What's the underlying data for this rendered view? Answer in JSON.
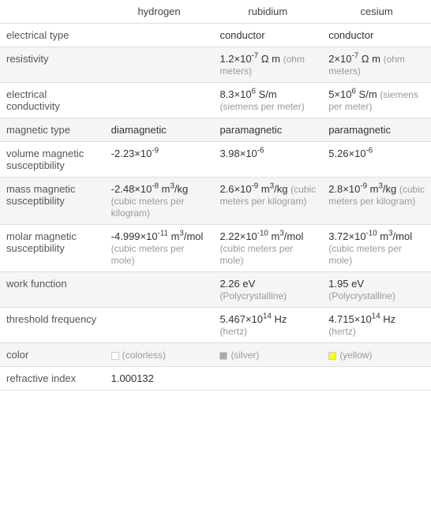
{
  "columns": [
    "hydrogen",
    "rubidium",
    "cesium"
  ],
  "rows": [
    {
      "label": "electrical type",
      "cells": [
        {
          "value": "",
          "unit": ""
        },
        {
          "value": "conductor",
          "unit": ""
        },
        {
          "value": "conductor",
          "unit": ""
        }
      ]
    },
    {
      "label": "resistivity",
      "cells": [
        {
          "value": "",
          "unit": ""
        },
        {
          "value_html": "1.2×10<sup>-7</sup> Ω m",
          "unit": "(ohm meters)"
        },
        {
          "value_html": "2×10<sup>-7</sup> Ω m",
          "unit": "(ohm meters)"
        }
      ]
    },
    {
      "label": "electrical conductivity",
      "cells": [
        {
          "value": "",
          "unit": ""
        },
        {
          "value_html": "8.3×10<sup>6</sup> S/m",
          "unit": "(siemens per meter)"
        },
        {
          "value_html": "5×10<sup>6</sup> S/m",
          "unit": "(siemens per meter)"
        }
      ]
    },
    {
      "label": "magnetic type",
      "cells": [
        {
          "value": "diamagnetic",
          "unit": ""
        },
        {
          "value": "paramagnetic",
          "unit": ""
        },
        {
          "value": "paramagnetic",
          "unit": ""
        }
      ]
    },
    {
      "label": "volume magnetic susceptibility",
      "cells": [
        {
          "value_html": "-2.23×10<sup>-9</sup>",
          "unit": ""
        },
        {
          "value_html": "3.98×10<sup>-6</sup>",
          "unit": ""
        },
        {
          "value_html": "5.26×10<sup>-6</sup>",
          "unit": ""
        }
      ]
    },
    {
      "label": "mass magnetic susceptibility",
      "cells": [
        {
          "value_html": "-2.48×10<sup>-8</sup> m<sup>3</sup>/kg",
          "unit": "(cubic meters per kilogram)"
        },
        {
          "value_html": "2.6×10<sup>-9</sup> m<sup>3</sup>/kg",
          "unit": "(cubic meters per kilogram)"
        },
        {
          "value_html": "2.8×10<sup>-9</sup> m<sup>3</sup>/kg",
          "unit": "(cubic meters per kilogram)"
        }
      ]
    },
    {
      "label": "molar magnetic susceptibility",
      "cells": [
        {
          "value_html": "-4.999×10<sup>-11</sup> m<sup>3</sup>/mol",
          "unit": "(cubic meters per mole)"
        },
        {
          "value_html": "2.22×10<sup>-10</sup> m<sup>3</sup>/mol",
          "unit": "(cubic meters per mole)"
        },
        {
          "value_html": "3.72×10<sup>-10</sup> m<sup>3</sup>/mol",
          "unit": "(cubic meters per mole)"
        }
      ]
    },
    {
      "label": "work function",
      "cells": [
        {
          "value": "",
          "unit": ""
        },
        {
          "value": "2.26 eV",
          "unit": "(Polycrystalline)"
        },
        {
          "value": "1.95 eV",
          "unit": "(Polycrystalline)"
        }
      ]
    },
    {
      "label": "threshold frequency",
      "cells": [
        {
          "value": "",
          "unit": ""
        },
        {
          "value_html": "5.467×10<sup>14</sup> Hz",
          "unit": "(hertz)"
        },
        {
          "value_html": "4.715×10<sup>14</sup> Hz",
          "unit": "(hertz)"
        }
      ]
    },
    {
      "label": "color",
      "cells": [
        {
          "swatch": "#ffffff",
          "value": "(colorless)",
          "unit": "",
          "value_is_unit_style": true
        },
        {
          "swatch": "#aaaaaa",
          "value": "(silver)",
          "unit": "",
          "value_is_unit_style": true
        },
        {
          "swatch": "#ffff00",
          "value": "(yellow)",
          "unit": "",
          "value_is_unit_style": true
        }
      ]
    },
    {
      "label": "refractive index",
      "cells": [
        {
          "value": "1.000132",
          "unit": ""
        },
        {
          "value": "",
          "unit": ""
        },
        {
          "value": "",
          "unit": ""
        }
      ]
    }
  ],
  "colors": {
    "swatch_border": "#ccc",
    "unit_text": "#999",
    "row_even_bg": "#f5f5f5",
    "row_odd_bg": "#ffffff"
  }
}
